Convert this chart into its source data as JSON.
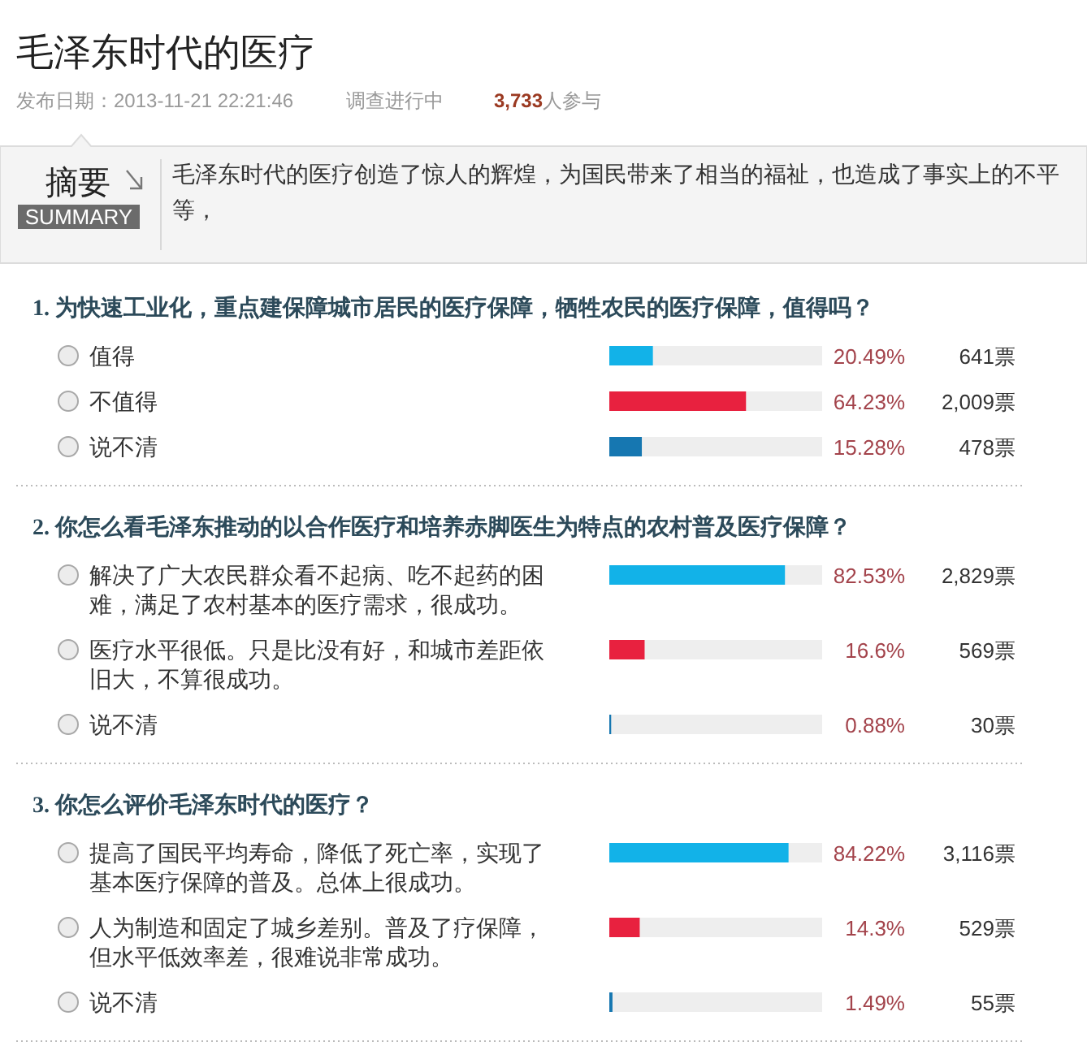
{
  "chart_data": [
    {
      "type": "other",
      "title": "毛泽东时代的医疗",
      "annotations": [
        "发布日期：2013-11-21 22:21:46",
        "调查进行中",
        "3,733人参与",
        "摘要",
        "SUMMARY",
        "毛泽东时代的医疗创造了惊人的辉煌，为国民带来了相当的福祉，也造成了事实上的不平等，"
      ]
    },
    {
      "type": "bar",
      "orientation": "horizontal",
      "title": "1. 为快速工业化，重点建保障城市居民的医疗保障，牺牲农民的医疗保障，值得吗？",
      "categories": [
        "值得",
        "不值得",
        "说不清"
      ],
      "values": [
        20.49,
        64.23,
        15.28
      ],
      "colors": [
        "#12b2e8",
        "#e8213f",
        "#1677b1"
      ],
      "xlim": [
        0,
        100
      ],
      "tick_labels": "y",
      "value_labels": [
        "20.49%",
        "64.23%",
        "15.28%"
      ],
      "annotations": [
        "641票",
        "2,009票",
        "478票"
      ]
    },
    {
      "type": "bar",
      "orientation": "horizontal",
      "title": "2. 你怎么看毛泽东推动的以合作医疗和培养赤脚医生为特点的农村普及医疗保障？",
      "categories": [
        "解决了广大农民群众看不起病、吃不起药的困难，满足了农村基本的医疗需求，很成功。",
        "医疗水平很低。只是比没有好，和城市差距依旧大，不算很成功。",
        "说不清"
      ],
      "values": [
        82.53,
        16.6,
        0.88
      ],
      "colors": [
        "#12b2e8",
        "#e8213f",
        "#1677b1"
      ],
      "xlim": [
        0,
        100
      ],
      "tick_labels": "y",
      "value_labels": [
        "82.53%",
        "16.6%",
        "0.88%"
      ],
      "annotations": [
        "2,829票",
        "569票",
        "30票"
      ]
    },
    {
      "type": "bar",
      "orientation": "horizontal",
      "title": "3. 你怎么评价毛泽东时代的医疗？",
      "categories": [
        "提高了国民平均寿命，降低了死亡率，实现了基本医疗保障的普及。总体上很成功。",
        "人为制造和固定了城乡差别。普及了疗保障，但水平低效率差，很难说非常成功。",
        "说不清"
      ],
      "values": [
        84.22,
        14.3,
        1.49
      ],
      "colors": [
        "#12b2e8",
        "#e8213f",
        "#1677b1"
      ],
      "xlim": [
        0,
        100
      ],
      "tick_labels": "y",
      "value_labels": [
        "84.22%",
        "14.3%",
        "1.49%"
      ],
      "annotations": [
        "3,116票",
        "529票",
        "55票"
      ]
    }
  ]
}
